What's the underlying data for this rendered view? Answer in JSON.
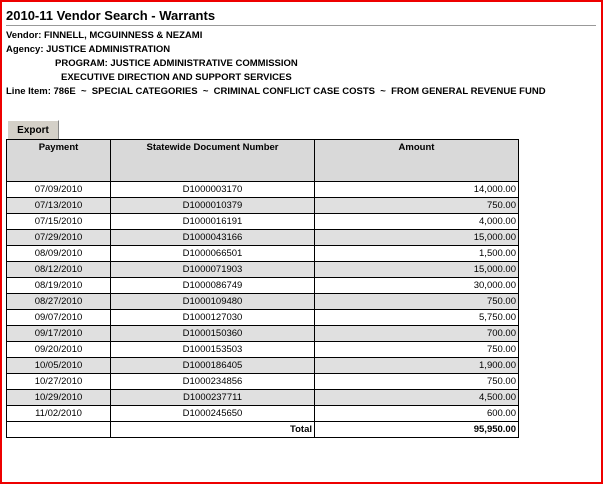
{
  "header": {
    "title": "2010-11 Vendor Search - Warrants",
    "lines": [
      "Vendor: FINNELL, MCGUINNESS & NEZAMI",
      "Agency: JUSTICE ADMINISTRATION",
      "PROGRAM: JUSTICE ADMINISTRATIVE COMMISSION",
      "EXECUTIVE DIRECTION AND SUPPORT SERVICES",
      "Line Item: 786E  ~  SPECIAL CATEGORIES  ~  CRIMINAL CONFLICT CASE COSTS  ~  FROM GENERAL REVENUE FUND"
    ]
  },
  "export_button": "Export",
  "table": {
    "columns": [
      "Payment",
      "Statewide Document Number",
      "Amount"
    ],
    "rows": [
      [
        "07/09/2010",
        "D1000003170",
        "14,000.00"
      ],
      [
        "07/13/2010",
        "D1000010379",
        "750.00"
      ],
      [
        "07/15/2010",
        "D1000016191",
        "4,000.00"
      ],
      [
        "07/29/2010",
        "D1000043166",
        "15,000.00"
      ],
      [
        "08/09/2010",
        "D1000066501",
        "1,500.00"
      ],
      [
        "08/12/2010",
        "D1000071903",
        "15,000.00"
      ],
      [
        "08/19/2010",
        "D1000086749",
        "30,000.00"
      ],
      [
        "08/27/2010",
        "D1000109480",
        "750.00"
      ],
      [
        "09/07/2010",
        "D1000127030",
        "5,750.00"
      ],
      [
        "09/17/2010",
        "D1000150360",
        "700.00"
      ],
      [
        "09/20/2010",
        "D1000153503",
        "750.00"
      ],
      [
        "10/05/2010",
        "D1000186405",
        "1,900.00"
      ],
      [
        "10/27/2010",
        "D1000234856",
        "750.00"
      ],
      [
        "10/29/2010",
        "D1000237711",
        "4,500.00"
      ],
      [
        "11/02/2010",
        "D1000245650",
        "600.00"
      ]
    ],
    "total_label": "Total",
    "total": "95,950.00"
  }
}
